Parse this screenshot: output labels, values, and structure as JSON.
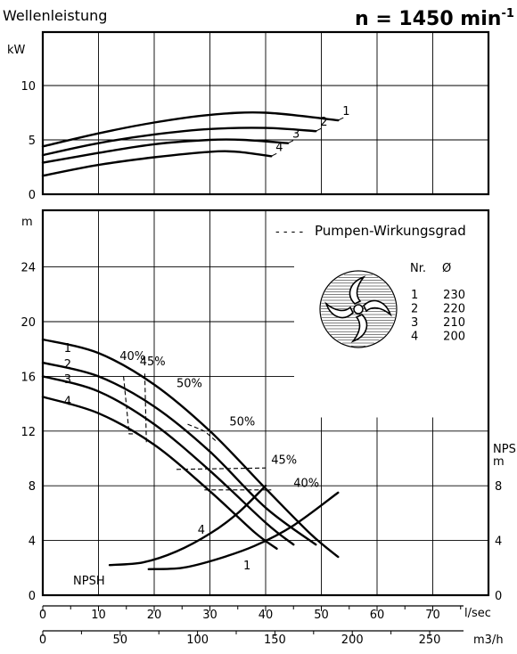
{
  "header": {
    "title": "Wellenleistung",
    "speed_text": "n = 1450 min",
    "speed_exp": "-1"
  },
  "chart_data": [
    {
      "type": "line",
      "title": "Wellenleistung",
      "ylabel": "kW",
      "yticks": [
        "0",
        "5",
        "10"
      ],
      "ylim": [
        0,
        12
      ],
      "xlim": [
        0,
        80
      ],
      "grid": true,
      "series": [
        {
          "name": "1",
          "points": [
            [
              0,
              4.4
            ],
            [
              10,
              5.6
            ],
            [
              20,
              6.6
            ],
            [
              30,
              7.3
            ],
            [
              40,
              7.5
            ],
            [
              53,
              6.8
            ]
          ]
        },
        {
          "name": "2",
          "points": [
            [
              0,
              3.6
            ],
            [
              10,
              4.7
            ],
            [
              20,
              5.5
            ],
            [
              30,
              6.0
            ],
            [
              40,
              6.1
            ],
            [
              49,
              5.8
            ]
          ]
        },
        {
          "name": "3",
          "points": [
            [
              0,
              2.9
            ],
            [
              10,
              3.8
            ],
            [
              20,
              4.6
            ],
            [
              30,
              5.0
            ],
            [
              36,
              5.0
            ],
            [
              44,
              4.7
            ]
          ]
        },
        {
          "name": "4",
          "points": [
            [
              0,
              1.7
            ],
            [
              10,
              2.7
            ],
            [
              20,
              3.4
            ],
            [
              30,
              3.9
            ],
            [
              35,
              3.9
            ],
            [
              41,
              3.5
            ]
          ]
        }
      ],
      "curve_labels": [
        "1",
        "2",
        "3",
        "4"
      ]
    },
    {
      "type": "line",
      "ylabel": "m",
      "yticks": [
        "0",
        "4",
        "8",
        "12",
        "16",
        "20",
        "24"
      ],
      "ylim": [
        0,
        27
      ],
      "xlabel": "l/sec",
      "xticks": [
        "0",
        "10",
        "20",
        "30",
        "40",
        "50",
        "60",
        "70"
      ],
      "xlim": [
        0,
        80
      ],
      "x2label": "m3/h",
      "x2ticks": [
        "0",
        "50",
        "100",
        "150",
        "200",
        "250"
      ],
      "right_axis_label_1": "NPSH",
      "right_axis_label_2": "m",
      "right_ticks": [
        "0",
        "4",
        "8"
      ],
      "legend_dash": "- - - -",
      "legend_text": "Pumpen-Wirkungsgrad",
      "series": [
        {
          "name": "1",
          "points": [
            [
              0,
              18.7
            ],
            [
              10,
              17.7
            ],
            [
              20,
              15.4
            ],
            [
              30,
              12.0
            ],
            [
              40,
              7.8
            ],
            [
              48,
              4.5
            ],
            [
              53,
              2.8
            ]
          ]
        },
        {
          "name": "2",
          "points": [
            [
              0,
              17.0
            ],
            [
              10,
              16.0
            ],
            [
              20,
              13.8
            ],
            [
              30,
              10.5
            ],
            [
              40,
              6.4
            ],
            [
              49,
              3.7
            ]
          ]
        },
        {
          "name": "3",
          "points": [
            [
              0,
              16.0
            ],
            [
              10,
              14.9
            ],
            [
              20,
              12.5
            ],
            [
              30,
              9.1
            ],
            [
              40,
              5.3
            ],
            [
              45,
              3.7
            ]
          ]
        },
        {
          "name": "4",
          "points": [
            [
              0,
              14.5
            ],
            [
              10,
              13.3
            ],
            [
              20,
              11.0
            ],
            [
              30,
              7.6
            ],
            [
              38,
              4.6
            ],
            [
              42,
              3.4
            ]
          ]
        }
      ],
      "curve_labels": [
        "1",
        "2",
        "3",
        "4"
      ],
      "efficiency_labels": [
        "40%",
        "45%",
        "50%",
        "50%",
        "45%",
        "40%"
      ],
      "npsh_label": "NPSH",
      "npsh_curves": [
        {
          "name": "4",
          "points": [
            [
              12,
              2.2
            ],
            [
              18,
              2.4
            ],
            [
              24,
              3.2
            ],
            [
              30,
              4.5
            ],
            [
              35,
              6.0
            ],
            [
              40,
              8.0
            ]
          ]
        },
        {
          "name": "1",
          "points": [
            [
              19,
              1.9
            ],
            [
              25,
              2.0
            ],
            [
              31,
              2.6
            ],
            [
              38,
              3.6
            ],
            [
              45,
              5.1
            ],
            [
              53,
              7.5
            ]
          ]
        }
      ],
      "npsh_curve_labels": [
        "4",
        "1"
      ],
      "impeller_table": {
        "headers": [
          "Nr.",
          "Ø"
        ],
        "rows": [
          [
            "1",
            "230"
          ],
          [
            "2",
            "220"
          ],
          [
            "3",
            "210"
          ],
          [
            "4",
            "200"
          ]
        ]
      }
    }
  ]
}
